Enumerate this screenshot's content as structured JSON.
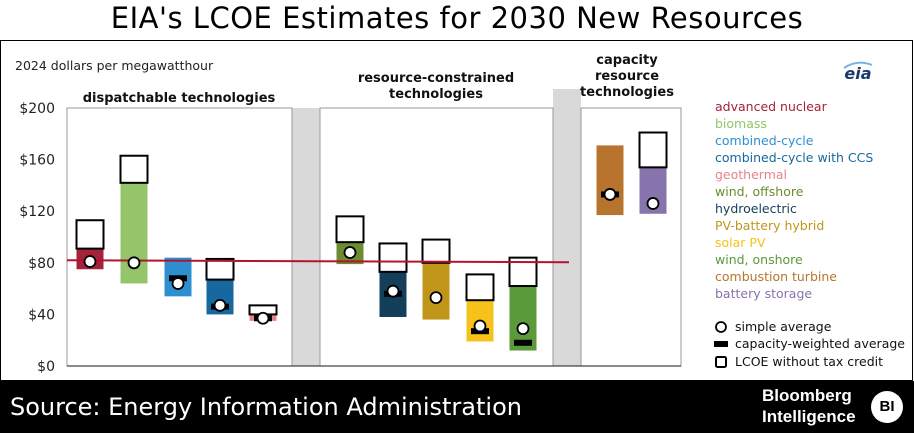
{
  "header": {
    "title": "EIA's LCOE Estimates for 2030 New Resources"
  },
  "footer": {
    "source": "Source: Energy Information Administration",
    "brand_line1": "Bloomberg",
    "brand_line2": "Intelligence",
    "badge": "BI"
  },
  "logo": "eia",
  "chart_data": {
    "type": "bar",
    "ylabel": "2024 dollars per megawatthour",
    "ylim": [
      0,
      200
    ],
    "yticks": [
      "$0",
      "$40",
      "$80",
      "$120",
      "$160",
      "$200"
    ],
    "ytick_values": [
      0,
      40,
      80,
      120,
      160,
      200
    ],
    "reference_line": 82,
    "groups": [
      {
        "label": "dispatchable technologies"
      },
      {
        "label": "resource-constrained technologies"
      },
      {
        "label": "capacity resource technologies"
      }
    ],
    "series": [
      {
        "name": "advanced nuclear",
        "group": 0,
        "color": "#a3233a",
        "range": [
          75,
          91
        ],
        "without_credit": 113,
        "simple_avg": 81,
        "weighted_avg": null
      },
      {
        "name": "biomass",
        "group": 0,
        "color": "#95c56a",
        "range": [
          64,
          142
        ],
        "without_credit": 163,
        "simple_avg": 80,
        "weighted_avg": null
      },
      {
        "name": "combined-cycle",
        "group": 0,
        "color": "#2e8fd0",
        "range": [
          54,
          84
        ],
        "without_credit": 84,
        "simple_avg": 64,
        "weighted_avg": 68
      },
      {
        "name": "combined-cycle with CCS",
        "group": 0,
        "color": "#16689e",
        "range": [
          40,
          67
        ],
        "without_credit": 83,
        "simple_avg": 47,
        "weighted_avg": 46
      },
      {
        "name": "geothermal",
        "group": 0,
        "color": "#e8828f",
        "range": [
          35,
          40
        ],
        "without_credit": 47,
        "simple_avg": 37,
        "weighted_avg": 37
      },
      {
        "name": "wind, offshore",
        "group": 1,
        "color": "#6b8c2f",
        "range": [
          79,
          96
        ],
        "without_credit": 116,
        "simple_avg": 88,
        "weighted_avg": null
      },
      {
        "name": "hydroelectric",
        "group": 1,
        "color": "#143f5a",
        "range": [
          38,
          73
        ],
        "without_credit": 95,
        "simple_avg": 58,
        "weighted_avg": 56
      },
      {
        "name": "PV-battery hybrid",
        "group": 1,
        "color": "#c0961a",
        "range": [
          36,
          80
        ],
        "without_credit": 98,
        "simple_avg": 53,
        "weighted_avg": null
      },
      {
        "name": "solar PV",
        "group": 1,
        "color": "#f6c21a",
        "range": [
          19,
          51
        ],
        "without_credit": 71,
        "simple_avg": 31,
        "weighted_avg": 27
      },
      {
        "name": "wind, onshore",
        "group": 1,
        "color": "#5a9a3a",
        "range": [
          12,
          62
        ],
        "without_credit": 84,
        "simple_avg": 29,
        "weighted_avg": 18
      },
      {
        "name": "combustion turbine",
        "group": 2,
        "color": "#b8742e",
        "range": [
          117,
          171
        ],
        "without_credit": 171,
        "simple_avg": 133,
        "weighted_avg": 133
      },
      {
        "name": "battery storage",
        "group": 2,
        "color": "#8774ad",
        "range": [
          118,
          154
        ],
        "without_credit": 181,
        "simple_avg": 126,
        "weighted_avg": null
      }
    ],
    "marker_legend": [
      "simple average",
      "capacity-weighted average",
      "LCOE without tax credit"
    ]
  }
}
